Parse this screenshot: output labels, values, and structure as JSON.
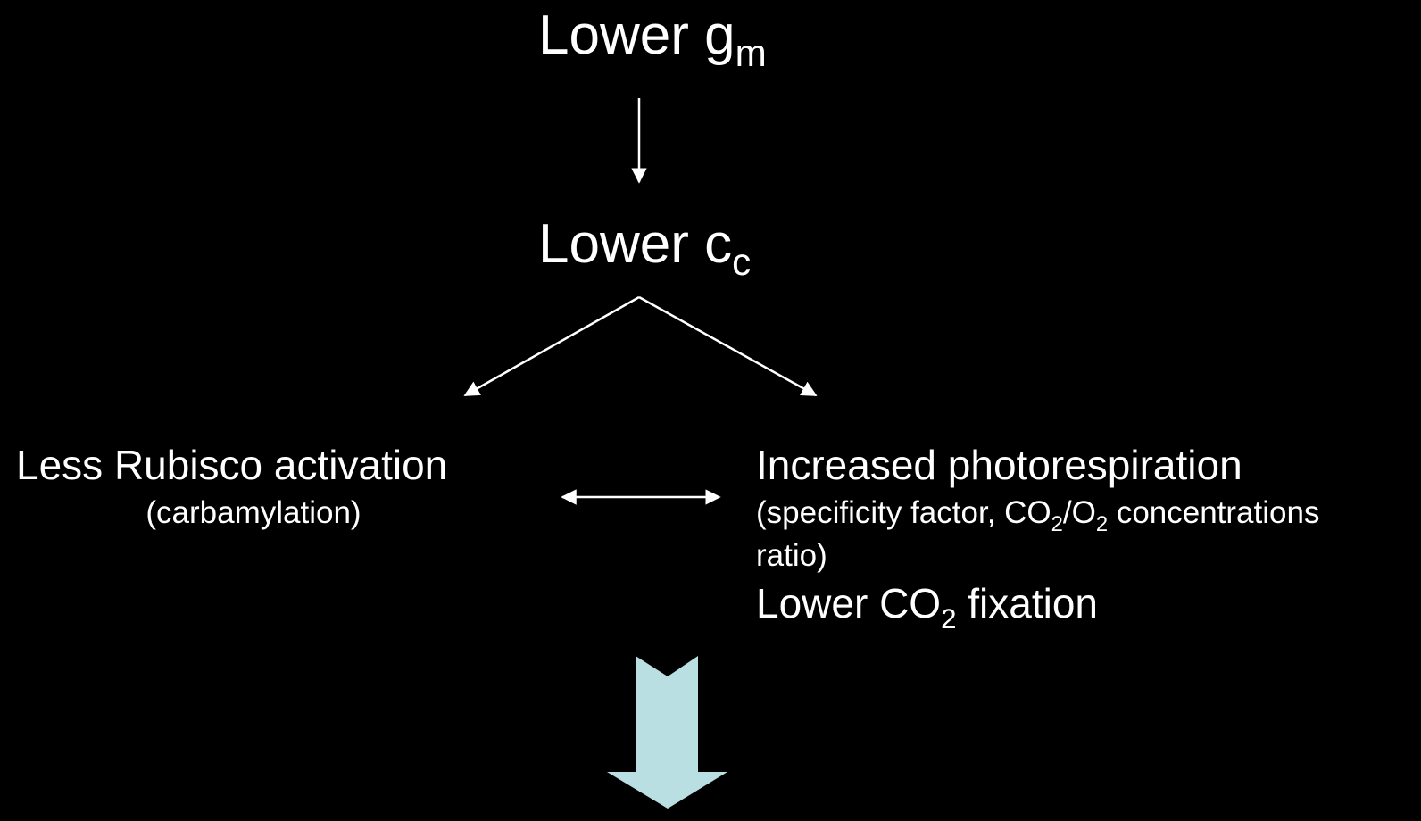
{
  "nodes": {
    "top": {
      "text": "Lower g",
      "sub": "m"
    },
    "middle": {
      "text": "Lower c",
      "sub": "c"
    },
    "left": {
      "label": "Less Rubisco activation",
      "note": "(carbamylation)"
    },
    "right": {
      "label": "Increased photorespiration",
      "note_line1": [
        "(specificity factor, CO",
        "2",
        "/O",
        "2",
        " concentrations"
      ],
      "note_line2": "ratio)",
      "effect": [
        "Lower CO",
        "2",
        " fixation"
      ]
    }
  }
}
